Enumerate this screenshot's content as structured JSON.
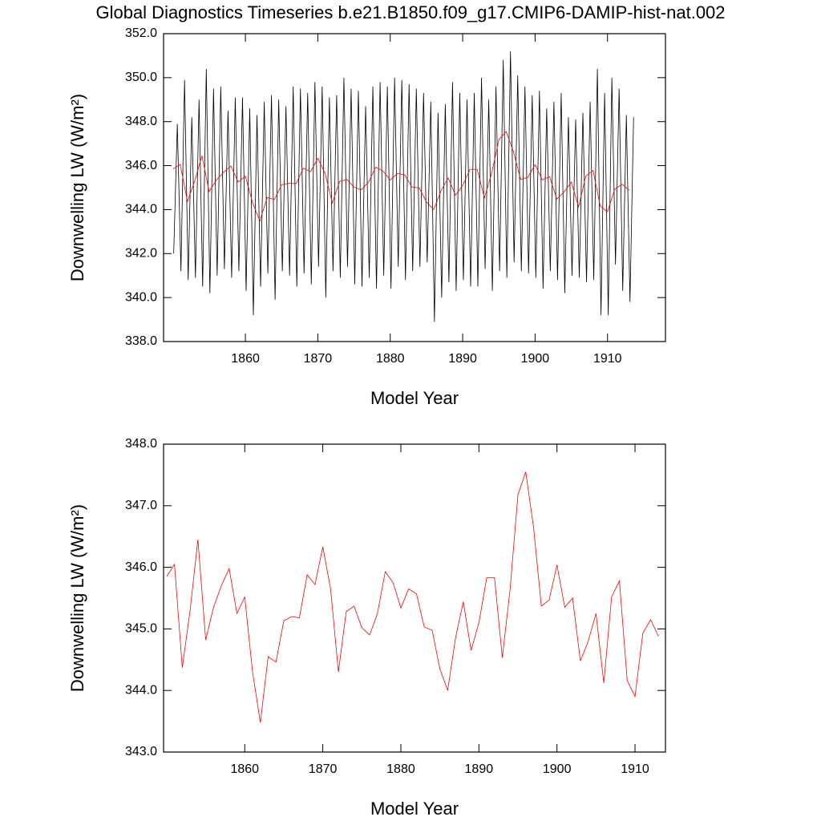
{
  "chart_data": [
    {
      "type": "line",
      "title": "Global Diagnostics Timeseries b.e21.B1850.f09_g17.CMIP6-DAMIP-hist-nat.002",
      "x_label": "Model Year",
      "y_label": "Downwelling LW (W/m²)",
      "xlim": [
        1848.7,
        1918
      ],
      "xticks": [
        1860,
        1870,
        1880,
        1890,
        1900,
        1910
      ],
      "ylim": [
        338,
        352
      ],
      "yticks": [
        {
          "value": 338,
          "label": "338.0"
        },
        {
          "value": 340,
          "label": "340.0"
        },
        {
          "value": 342,
          "label": "342.0"
        },
        {
          "value": 344,
          "label": "344.0"
        },
        {
          "value": 346,
          "label": "346.0"
        },
        {
          "value": 348,
          "label": "348.0"
        },
        {
          "value": 350,
          "label": "350.0"
        },
        {
          "value": 352,
          "label": "352.0"
        }
      ],
      "series": [
        {
          "color": "#000000",
          "x": [
            1850.1,
            1850.6,
            1851.1,
            1851.6,
            1852.1,
            1852.6,
            1853.1,
            1853.6,
            1854.1,
            1854.6,
            1855.1,
            1855.6,
            1856.1,
            1856.6,
            1857.1,
            1857.6,
            1858.1,
            1858.6,
            1859.1,
            1859.6,
            1860.1,
            1860.6,
            1861.1,
            1861.6,
            1862.1,
            1862.6,
            1863.1,
            1863.6,
            1864.1,
            1864.6,
            1865.1,
            1865.6,
            1866.1,
            1866.6,
            1867.1,
            1867.6,
            1868.1,
            1868.6,
            1869.1,
            1869.6,
            1870.1,
            1870.6,
            1871.1,
            1871.6,
            1872.1,
            1872.6,
            1873.1,
            1873.6,
            1874.1,
            1874.6,
            1875.1,
            1875.6,
            1876.1,
            1876.6,
            1877.1,
            1877.6,
            1878.1,
            1878.6,
            1879.1,
            1879.6,
            1880.1,
            1880.6,
            1881.1,
            1881.6,
            1882.1,
            1882.6,
            1883.1,
            1883.6,
            1884.1,
            1884.6,
            1885.1,
            1885.6,
            1886.1,
            1886.6,
            1887.1,
            1887.6,
            1888.1,
            1888.6,
            1889.1,
            1889.6,
            1890.1,
            1890.6,
            1891.1,
            1891.6,
            1892.1,
            1892.6,
            1893.1,
            1893.6,
            1894.1,
            1894.6,
            1895.1,
            1895.6,
            1896.1,
            1896.6,
            1897.1,
            1897.6,
            1898.1,
            1898.6,
            1899.1,
            1899.6,
            1900.1,
            1900.6,
            1901.1,
            1901.6,
            1902.1,
            1902.6,
            1903.1,
            1903.6,
            1904.1,
            1904.6,
            1905.1,
            1905.6,
            1906.1,
            1906.6,
            1907.1,
            1907.6,
            1908.1,
            1908.6,
            1909.1,
            1909.6,
            1910.1,
            1910.6,
            1911.1,
            1911.6,
            1912.1,
            1912.6,
            1913.1,
            1913.6
          ],
          "values": [
            342,
            347.9,
            341.2,
            349.9,
            340.8,
            348.2,
            340.9,
            349,
            340.5,
            350.4,
            340.2,
            349.5,
            341,
            349.6,
            341.3,
            348.5,
            340.9,
            349.1,
            341.2,
            349.1,
            340.3,
            348.6,
            339.2,
            348.3,
            340.5,
            348.9,
            341.1,
            349.2,
            339.9,
            349,
            341.2,
            348.7,
            341,
            349.6,
            340.5,
            349.5,
            341.1,
            349.3,
            340.6,
            349.8,
            341.4,
            349.6,
            340,
            349.1,
            341.2,
            349.2,
            340.9,
            350,
            341.4,
            349.5,
            340.6,
            349.4,
            340.5,
            348.7,
            340.9,
            349.6,
            340.4,
            349.8,
            341,
            349.6,
            340.4,
            350,
            341.4,
            349.9,
            340.8,
            349.7,
            341.2,
            349.5,
            341.4,
            349.3,
            341.6,
            348.9,
            338.9,
            348.4,
            340,
            348.8,
            340.7,
            349.8,
            340.3,
            349.3,
            340.8,
            349,
            340.5,
            349.3,
            340.5,
            350,
            341.3,
            349,
            340.3,
            349.6,
            341.2,
            350.8,
            340.9,
            351.2,
            341.6,
            350.1,
            341.2,
            349.6,
            341.1,
            349.2,
            340.9,
            349.4,
            340.4,
            348.6,
            341.2,
            348.9,
            340.8,
            349.3,
            340.2,
            348.2,
            341,
            348.1,
            340.9,
            348.4,
            340.7,
            348.9,
            340.8,
            350.4,
            339.2,
            349.3,
            339.2,
            350,
            341.5,
            349.5,
            340.3,
            348.3,
            339.8,
            348.2
          ]
        },
        {
          "color": "#ff0000",
          "x": [
            1850,
            1851,
            1852,
            1853,
            1854,
            1855,
            1856,
            1857,
            1858,
            1859,
            1860,
            1861,
            1862,
            1863,
            1864,
            1865,
            1866,
            1867,
            1868,
            1869,
            1870,
            1871,
            1872,
            1873,
            1874,
            1875,
            1876,
            1877,
            1878,
            1879,
            1880,
            1881,
            1882,
            1883,
            1884,
            1885,
            1886,
            1887,
            1888,
            1889,
            1890,
            1891,
            1892,
            1893,
            1894,
            1895,
            1896,
            1897,
            1898,
            1899,
            1900,
            1901,
            1902,
            1903,
            1904,
            1905,
            1906,
            1907,
            1908,
            1909,
            1910,
            1911,
            1912,
            1913
          ],
          "values": [
            345.85,
            346.05,
            344.37,
            345.3,
            346.45,
            344.82,
            345.35,
            345.7,
            345.98,
            345.25,
            345.52,
            344.3,
            343.48,
            344.55,
            344.46,
            345.13,
            345.2,
            345.18,
            345.88,
            345.72,
            346.33,
            345.65,
            344.3,
            345.28,
            345.37,
            345.02,
            344.9,
            345.25,
            345.93,
            345.75,
            345.34,
            345.65,
            345.57,
            345.03,
            344.98,
            344.35,
            344,
            344.85,
            345.44,
            344.65,
            345.1,
            345.83,
            345.83,
            344.53,
            345.65,
            347.18,
            347.55,
            346.65,
            345.37,
            345.47,
            346.04,
            345.35,
            345.5,
            344.48,
            344.8,
            345.25,
            344.12,
            345.52,
            345.78,
            344.16,
            343.9,
            344.93,
            345.15,
            344.88
          ]
        }
      ]
    },
    {
      "type": "line",
      "x_label": "Model Year",
      "y_label": "Downwelling LW (W/m²)",
      "xlim": [
        1849.6,
        1913.9
      ],
      "xticks": [
        1860,
        1870,
        1880,
        1890,
        1900,
        1910
      ],
      "ylim": [
        343,
        348
      ],
      "yticks": [
        {
          "value": 343,
          "label": "343.0"
        },
        {
          "value": 344,
          "label": "344.0"
        },
        {
          "value": 345,
          "label": "345.0"
        },
        {
          "value": 346,
          "label": "346.0"
        },
        {
          "value": 347,
          "label": "347.0"
        },
        {
          "value": 348,
          "label": "348.0"
        }
      ],
      "series": [
        {
          "color": "#ff0000",
          "x": [
            1850,
            1851,
            1852,
            1853,
            1854,
            1855,
            1856,
            1857,
            1858,
            1859,
            1860,
            1861,
            1862,
            1863,
            1864,
            1865,
            1866,
            1867,
            1868,
            1869,
            1870,
            1871,
            1872,
            1873,
            1874,
            1875,
            1876,
            1877,
            1878,
            1879,
            1880,
            1881,
            1882,
            1883,
            1884,
            1885,
            1886,
            1887,
            1888,
            1889,
            1890,
            1891,
            1892,
            1893,
            1894,
            1895,
            1896,
            1897,
            1898,
            1899,
            1900,
            1901,
            1902,
            1903,
            1904,
            1905,
            1906,
            1907,
            1908,
            1909,
            1910,
            1911,
            1912,
            1913
          ],
          "values": [
            345.85,
            346.05,
            344.37,
            345.3,
            346.45,
            344.82,
            345.35,
            345.7,
            345.98,
            345.25,
            345.52,
            344.3,
            343.48,
            344.55,
            344.46,
            345.13,
            345.2,
            345.18,
            345.88,
            345.72,
            346.33,
            345.65,
            344.3,
            345.28,
            345.37,
            345.02,
            344.9,
            345.25,
            345.93,
            345.75,
            345.34,
            345.65,
            345.57,
            345.03,
            344.98,
            344.35,
            344,
            344.85,
            345.44,
            344.65,
            345.1,
            345.83,
            345.83,
            344.53,
            345.65,
            347.18,
            347.55,
            346.65,
            345.37,
            345.47,
            346.04,
            345.35,
            345.5,
            344.48,
            344.8,
            345.25,
            344.12,
            345.52,
            345.78,
            344.16,
            343.9,
            344.93,
            345.15,
            344.88
          ]
        }
      ]
    }
  ]
}
